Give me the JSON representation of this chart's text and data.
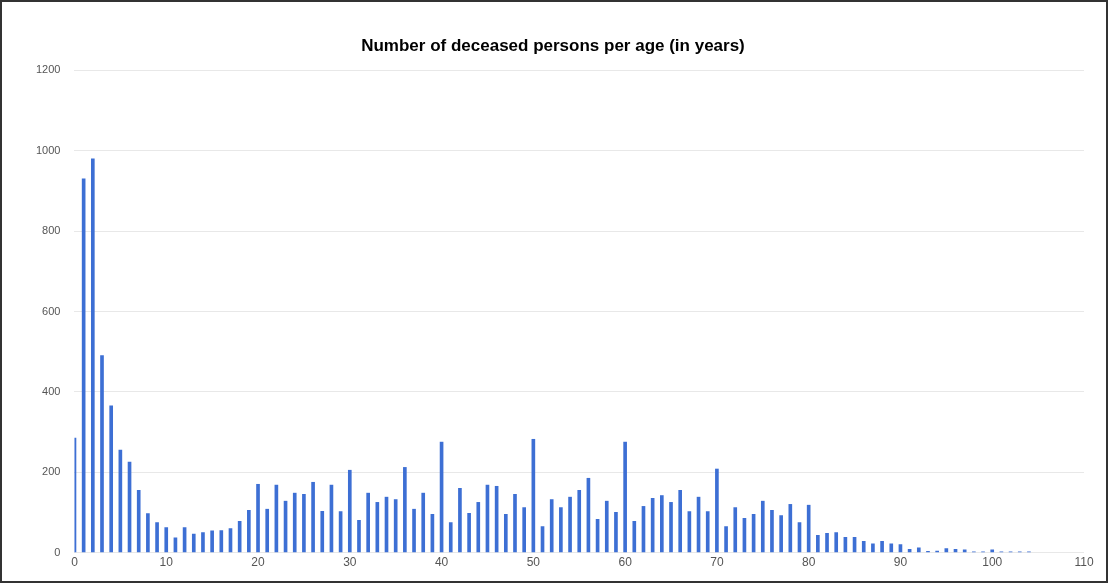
{
  "chart_data": {
    "type": "bar",
    "title": "Number of deceased persons per age (in years)",
    "x": [
      0,
      1,
      2,
      3,
      4,
      5,
      6,
      7,
      8,
      9,
      10,
      11,
      12,
      13,
      14,
      15,
      16,
      17,
      18,
      19,
      20,
      21,
      22,
      23,
      24,
      25,
      26,
      27,
      28,
      29,
      30,
      31,
      32,
      33,
      34,
      35,
      36,
      37,
      38,
      39,
      40,
      41,
      42,
      43,
      44,
      45,
      46,
      47,
      48,
      49,
      50,
      51,
      52,
      53,
      54,
      55,
      56,
      57,
      58,
      59,
      60,
      61,
      62,
      63,
      64,
      65,
      66,
      67,
      68,
      69,
      70,
      71,
      72,
      73,
      74,
      75,
      76,
      77,
      78,
      79,
      80,
      81,
      82,
      83,
      84,
      85,
      86,
      87,
      88,
      89,
      90,
      91,
      92,
      93,
      94,
      95,
      96,
      97,
      98,
      99,
      100,
      101,
      102,
      103,
      104
    ],
    "values": [
      285,
      930,
      980,
      490,
      365,
      255,
      225,
      155,
      97,
      75,
      62,
      37,
      62,
      46,
      50,
      54,
      55,
      60,
      78,
      105,
      170,
      108,
      168,
      128,
      148,
      145,
      175,
      103,
      168,
      102,
      205,
      80,
      148,
      125,
      138,
      132,
      212,
      108,
      148,
      95,
      275,
      75,
      160,
      98,
      125,
      168,
      165,
      95,
      145,
      112,
      282,
      65,
      132,
      112,
      138,
      155,
      185,
      83,
      128,
      100,
      275,
      78,
      115,
      135,
      142,
      125,
      155,
      102,
      138,
      102,
      208,
      65,
      112,
      85,
      95,
      128,
      105,
      92,
      120,
      75,
      118,
      43,
      48,
      50,
      38,
      38,
      28,
      22,
      28,
      22,
      20,
      8,
      12,
      3,
      4,
      10,
      8,
      7,
      2,
      2,
      7,
      2,
      2,
      2,
      2
    ],
    "color": "#3d6fd4",
    "xlim": [
      0,
      110
    ],
    "xticks": [
      0,
      10,
      20,
      30,
      40,
      50,
      60,
      70,
      80,
      90,
      100,
      110
    ],
    "ylim": [
      0,
      1200
    ],
    "yticks": [
      0,
      200,
      400,
      600,
      800,
      1000,
      1200
    ],
    "grid": "y"
  }
}
